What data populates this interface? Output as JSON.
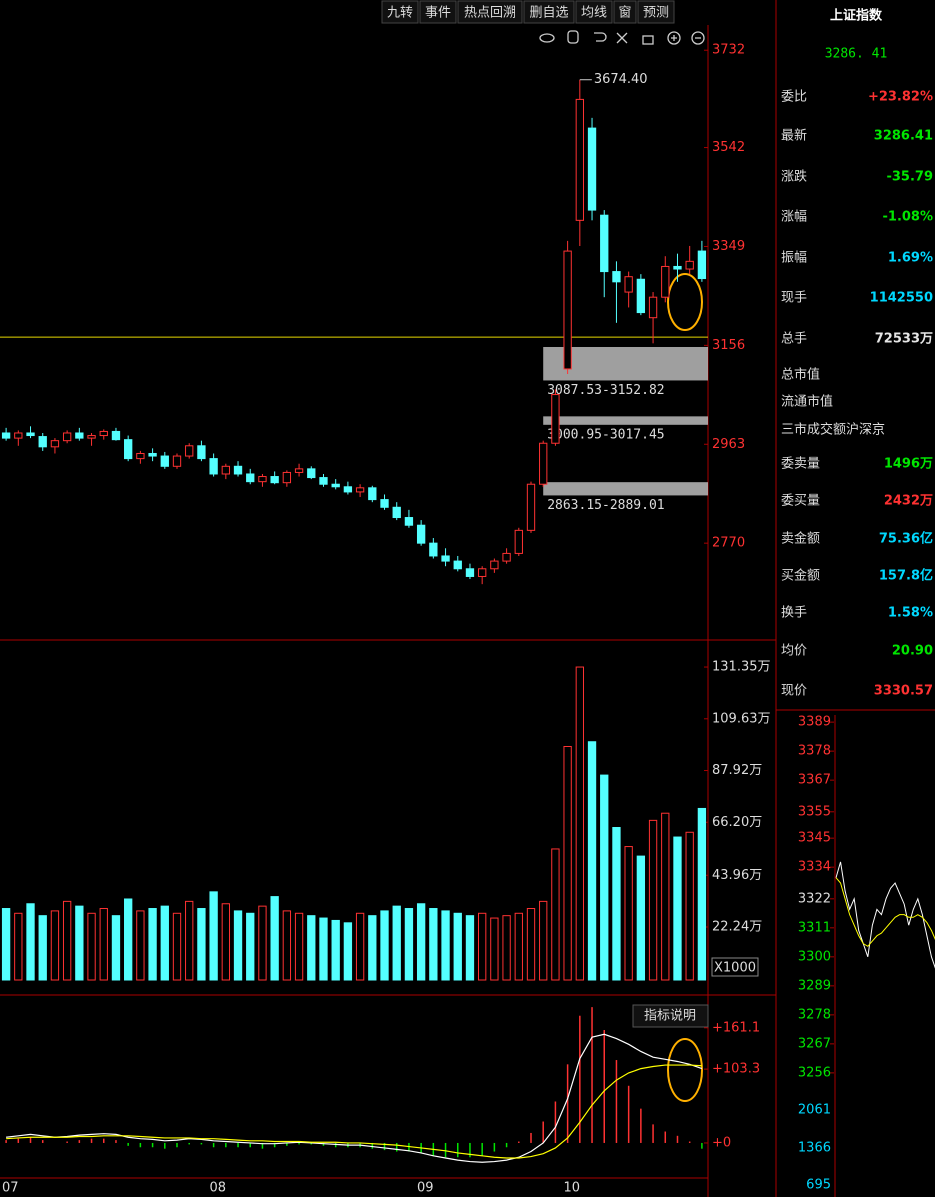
{
  "toolbar": [
    "九转",
    "事件",
    "热点回溯",
    "删自选",
    "均线",
    "窗",
    "预测"
  ],
  "quote": {
    "title": "上证指数",
    "price": "3286. 41",
    "rows": [
      {
        "label": "委比",
        "value": "+23.82%",
        "color": "#ff3232"
      },
      {
        "label": "最新",
        "value": "3286.41",
        "color": "#00e600"
      },
      {
        "label": "涨跌",
        "value": "-35.79",
        "color": "#00e600"
      },
      {
        "label": "涨幅",
        "value": "-1.08%",
        "color": "#00e600"
      },
      {
        "label": "振幅",
        "value": "1.69%",
        "color": "#00d8ff"
      },
      {
        "label": "现手",
        "value": "1142550",
        "color": "#00d8ff"
      },
      {
        "label": "总手",
        "value": "72533万",
        "color": "#e6e6e6"
      },
      {
        "label": "总市值"
      },
      {
        "label": "流通市值"
      },
      {
        "label": "三市成交额沪深京"
      },
      {
        "label": "委卖量",
        "value": "1496万",
        "color": "#00e600"
      },
      {
        "label": "委买量",
        "value": "2432万",
        "color": "#ff3232"
      },
      {
        "label": "卖金额",
        "value": "75.36亿",
        "color": "#00d8ff"
      },
      {
        "label": "买金额",
        "value": "157.8亿",
        "color": "#00d8ff"
      },
      {
        "label": "换手",
        "value": "1.58%",
        "color": "#00d8ff"
      },
      {
        "label": "均价",
        "value": "20.90",
        "color": "#00e600"
      },
      {
        "label": "现价",
        "value": "3330.57",
        "color": "#ff3232"
      }
    ]
  },
  "macd_button": "指标说明",
  "chart_data": [
    {
      "type": "candlestick",
      "categories": [
        "07",
        null,
        null,
        null,
        null,
        null,
        null,
        null,
        null,
        null,
        null,
        null,
        null,
        null,
        null,
        null,
        null,
        "08",
        null,
        null,
        null,
        null,
        null,
        null,
        null,
        null,
        null,
        null,
        null,
        null,
        null,
        null,
        null,
        null,
        "09",
        null,
        null,
        null,
        null,
        null,
        null,
        null,
        null,
        null,
        null,
        null,
        "10",
        null,
        null,
        null,
        null,
        null,
        null,
        null,
        null,
        null,
        null,
        null
      ],
      "open": [
        2985,
        2975,
        2985,
        2978,
        2958,
        2970,
        2985,
        2975,
        2980,
        2988,
        2972,
        2935,
        2945,
        2940,
        2920,
        2940,
        2960,
        2935,
        2905,
        2920,
        2905,
        2890,
        2900,
        2888,
        2908,
        2915,
        2898,
        2885,
        2880,
        2870,
        2878,
        2855,
        2840,
        2820,
        2805,
        2770,
        2745,
        2735,
        2720,
        2705,
        2720,
        2735,
        2750,
        2795,
        2885,
        2965,
        3110,
        3400,
        3580,
        3410,
        3300,
        3260,
        3285,
        3210,
        3250,
        3310,
        3305,
        3340
      ],
      "high": [
        2995,
        2990,
        2998,
        2985,
        2975,
        2990,
        2995,
        2985,
        2992,
        2995,
        2980,
        2950,
        2955,
        2948,
        2945,
        2965,
        2970,
        2945,
        2925,
        2930,
        2915,
        2905,
        2910,
        2912,
        2925,
        2920,
        2905,
        2895,
        2890,
        2885,
        2882,
        2865,
        2850,
        2835,
        2815,
        2780,
        2760,
        2745,
        2730,
        2725,
        2740,
        2760,
        2800,
        2890,
        2970,
        3070,
        3360,
        3674.4,
        3600,
        3420,
        3320,
        3300,
        3295,
        3260,
        3330,
        3335,
        3350,
        3360
      ],
      "low": [
        2970,
        2960,
        2975,
        2950,
        2945,
        2965,
        2970,
        2960,
        2972,
        2970,
        2930,
        2925,
        2930,
        2915,
        2915,
        2935,
        2930,
        2900,
        2895,
        2900,
        2885,
        2880,
        2885,
        2880,
        2900,
        2895,
        2880,
        2875,
        2865,
        2860,
        2850,
        2835,
        2815,
        2800,
        2765,
        2740,
        2725,
        2715,
        2700,
        2690,
        2712,
        2730,
        2745,
        2790,
        2880,
        2960,
        3100,
        3350,
        3400,
        3250,
        3200,
        3230,
        3215,
        3160,
        3240,
        3280,
        3295,
        3280
      ],
      "close": [
        2975,
        2985,
        2980,
        2958,
        2970,
        2985,
        2975,
        2980,
        2988,
        2972,
        2935,
        2945,
        2940,
        2920,
        2940,
        2960,
        2935,
        2905,
        2920,
        2905,
        2890,
        2900,
        2888,
        2908,
        2915,
        2898,
        2885,
        2880,
        2870,
        2878,
        2855,
        2840,
        2820,
        2805,
        2770,
        2745,
        2735,
        2720,
        2705,
        2720,
        2735,
        2750,
        2795,
        2885,
        2965,
        3060,
        3340,
        3636,
        3420,
        3300,
        3280,
        3290,
        3220,
        3250,
        3310,
        3305,
        3320,
        3286.41
      ],
      "up_color": "#ff3232",
      "down_color": "#54ffff",
      "ylim": [
        2581,
        3830
      ],
      "yticks": [
        3732,
        3542,
        3349,
        3156,
        2963,
        2770
      ],
      "reference_line": 3172,
      "peak_label": "3674.40",
      "peak_value": 3674.4,
      "gaps": [
        {
          "label": "3087.53-3152.82",
          "low": 3087.53,
          "high": 3152.82
        },
        {
          "label": "3000.95-3017.45",
          "low": 3000.95,
          "high": 3017.45
        },
        {
          "label": "2863.15-2889.01",
          "low": 2863.15,
          "high": 2889.01
        }
      ]
    },
    {
      "type": "bar",
      "values": [
        30,
        28,
        32,
        27,
        29,
        33,
        31,
        28,
        30,
        27,
        34,
        29,
        30,
        31,
        28,
        33,
        30,
        37,
        32,
        29,
        28,
        31,
        35,
        29,
        28,
        27,
        26,
        25,
        24,
        28,
        27,
        29,
        31,
        30,
        32,
        30,
        29,
        28,
        27,
        28,
        26,
        27,
        28,
        30,
        33,
        55,
        98,
        131.35,
        100,
        86,
        64,
        56,
        52,
        67,
        70,
        60,
        62,
        72
      ],
      "ylim": [
        0,
        140.6
      ],
      "yticks": [
        {
          "value": 131.35,
          "label": "131.35万"
        },
        {
          "value": 109.63,
          "label": "109.63万"
        },
        {
          "value": 87.92,
          "label": "87.92万"
        },
        {
          "value": 66.2,
          "label": "66.20万"
        },
        {
          "value": 43.96,
          "label": "43.96万"
        },
        {
          "value": 22.24,
          "label": "22.24万"
        }
      ],
      "unit_label": "X1000"
    },
    {
      "type": "macd",
      "series": [
        {
          "name": "DIF",
          "color": "#ffffff",
          "values": [
            8,
            10,
            12,
            10,
            8,
            9,
            11,
            12,
            13,
            12,
            8,
            6,
            5,
            3,
            4,
            6,
            5,
            3,
            2,
            1,
            0,
            -1,
            -1,
            0,
            1,
            0,
            -1,
            -2,
            -3,
            -3,
            -5,
            -7,
            -9,
            -11,
            -14,
            -18,
            -21,
            -24,
            -26,
            -27,
            -26,
            -24,
            -20,
            -12,
            0,
            22,
            62,
            118,
            148,
            152,
            146,
            138,
            128,
            120,
            117,
            114,
            110,
            104
          ]
        },
        {
          "name": "DEA",
          "color": "#ffff00",
          "values": [
            6,
            7,
            8,
            8,
            8,
            8,
            9,
            9,
            10,
            10,
            10,
            9,
            8,
            7,
            7,
            7,
            6,
            6,
            5,
            4,
            3,
            3,
            2,
            2,
            2,
            1,
            1,
            1,
            0,
            0,
            -1,
            -2,
            -3,
            -5,
            -7,
            -9,
            -11,
            -14,
            -16,
            -18,
            -20,
            -21,
            -21,
            -19,
            -15,
            -7,
            7,
            29,
            53,
            73,
            88,
            98,
            104,
            107,
            109,
            109,
            109,
            108
          ]
        }
      ],
      "hist": [
        4,
        6,
        8,
        4,
        0,
        2,
        4,
        6,
        6,
        4,
        -4,
        -6,
        -6,
        -8,
        -6,
        -2,
        -2,
        -6,
        -6,
        -6,
        -6,
        -8,
        -6,
        -4,
        -2,
        -2,
        -4,
        -6,
        -6,
        -6,
        -8,
        -10,
        -12,
        -12,
        -14,
        -18,
        -20,
        -20,
        -20,
        -18,
        -12,
        -6,
        2,
        14,
        30,
        58,
        110,
        178,
        190,
        158,
        116,
        80,
        48,
        26,
        16,
        10,
        2,
        -8
      ],
      "ylim": [
        -75.6,
        200
      ],
      "yticks": [
        {
          "value": 161.1,
          "label": "+161.1"
        },
        {
          "value": 103.3,
          "label": "+103.3"
        },
        {
          "value": 0,
          "label": "+0"
        }
      ]
    },
    {
      "type": "line",
      "series": [
        {
          "name": "price",
          "color": "#ffffff",
          "values": [
            3330,
            3336,
            3325,
            3318,
            3322,
            3310,
            3305,
            3300,
            3312,
            3318,
            3316,
            3322,
            3326,
            3328,
            3324,
            3320,
            3312,
            3318,
            3322,
            3316,
            3308,
            3300,
            3295
          ]
        },
        {
          "name": "avg",
          "color": "#ffff00",
          "values": [
            3330,
            3328,
            3322,
            3316,
            3312,
            3308,
            3305,
            3304,
            3306,
            3308,
            3309,
            3311,
            3313,
            3315,
            3316,
            3316,
            3315,
            3315,
            3316,
            3315,
            3313,
            3310,
            3306
          ]
        }
      ],
      "ylim": [
        3253.3,
        3391.7
      ],
      "yticks": [
        3389,
        3378,
        3367,
        3355,
        3345,
        3334,
        3322,
        3311,
        3300,
        3289,
        3278,
        3267,
        3256
      ],
      "vol_ylim": [
        476,
        2516
      ],
      "vol_yticks": [
        2061,
        1366,
        695
      ]
    }
  ]
}
